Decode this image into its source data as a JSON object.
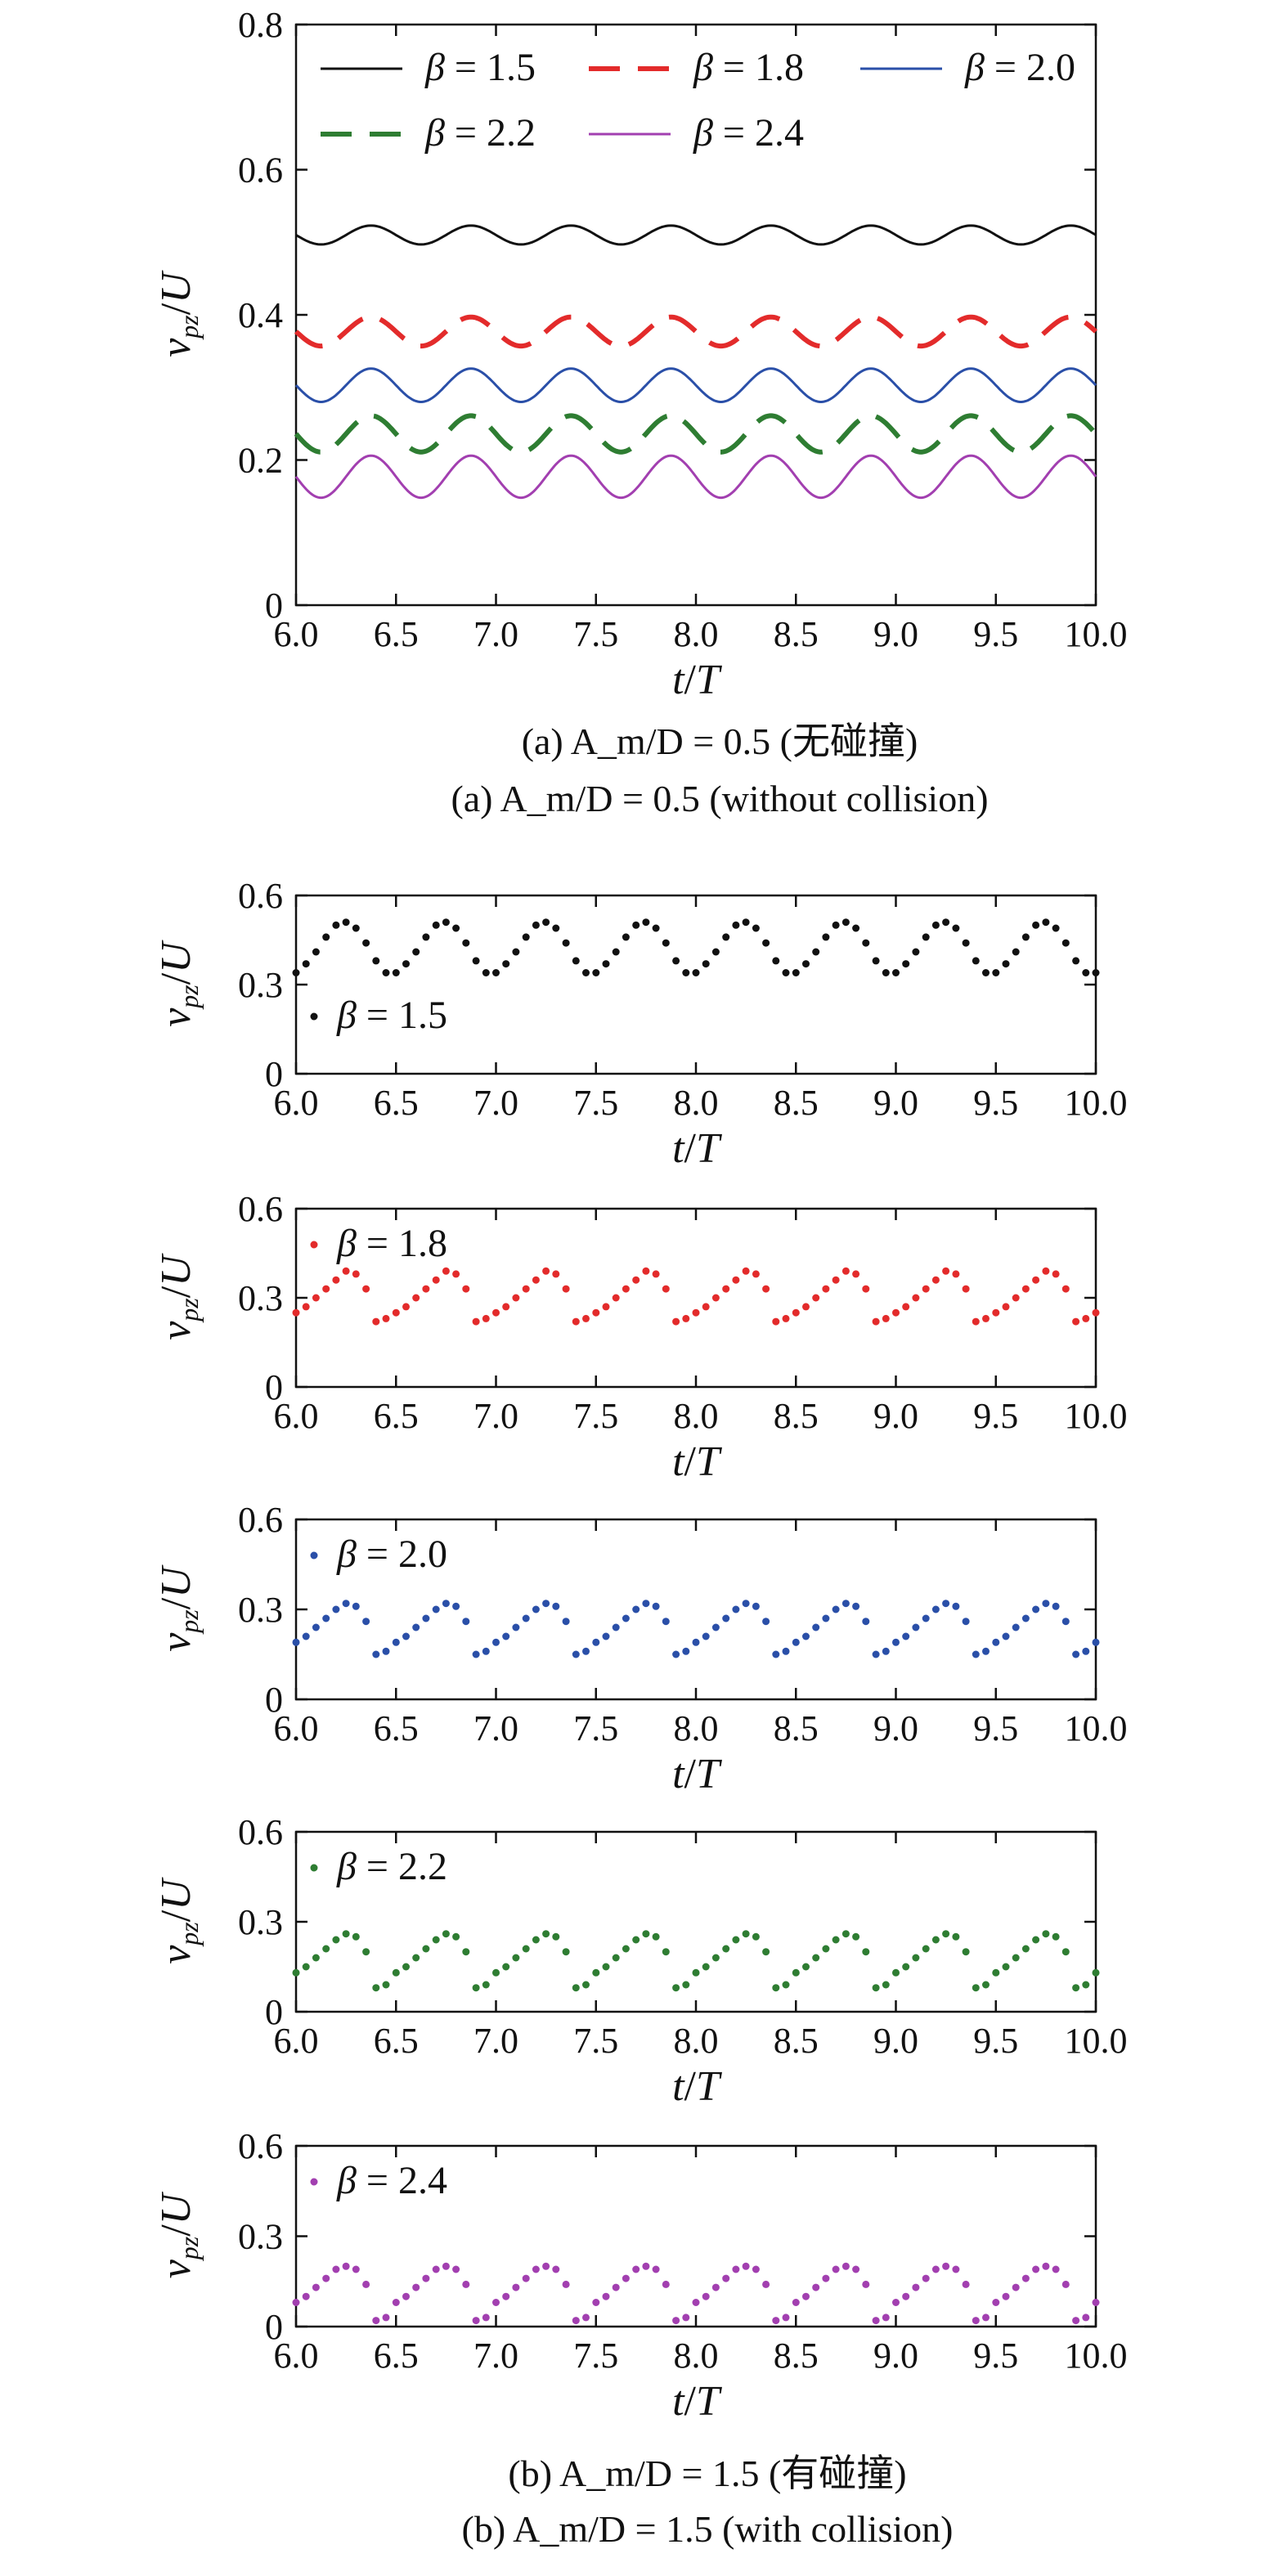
{
  "captions": {
    "a_zh": "(a) A_m/D = 0.5 (无碰撞)",
    "a_en": "(a) A_m/D = 0.5 (without collision)",
    "b_zh": "(b) A_m/D = 1.5 (有碰撞)",
    "b_en": "(b) A_m/D = 1.5 (with collision)"
  },
  "colors": {
    "beta_1_5": "#111111",
    "beta_1_8": "#e32b2b",
    "beta_2_0": "#2a4fa8",
    "beta_2_2": "#2e7d32",
    "beta_2_4": "#a23fb0"
  },
  "chart_data": [
    {
      "id": "a",
      "type": "line",
      "xlabel": "t/T",
      "ylabel": "v_pz/U",
      "xlim": [
        6.0,
        10.0
      ],
      "ylim": [
        0,
        0.8
      ],
      "xticks": [
        "6.0",
        "6.5",
        "7.0",
        "7.5",
        "8.0",
        "8.5",
        "9.0",
        "9.5",
        "10.0"
      ],
      "yticks": [
        "0",
        "0.2",
        "0.4",
        "0.6",
        "0.8"
      ],
      "legend_position": "top",
      "period": 0.5,
      "sample_t": [
        6.0,
        6.125,
        6.25,
        6.375,
        6.5
      ],
      "series": [
        {
          "name": "β = 1.5",
          "color": "#111111",
          "style": "solid",
          "mean": 0.51,
          "amplitude": 0.013,
          "values": [
            0.51,
            0.497,
            0.51,
            0.523,
            0.51
          ]
        },
        {
          "name": "β = 1.8",
          "color": "#e32b2b",
          "style": "dashed",
          "mean": 0.377,
          "amplitude": 0.02,
          "values": [
            0.377,
            0.357,
            0.377,
            0.397,
            0.377
          ]
        },
        {
          "name": "β = 2.0",
          "color": "#2a4fa8",
          "style": "solid",
          "mean": 0.303,
          "amplitude": 0.023,
          "values": [
            0.303,
            0.28,
            0.303,
            0.326,
            0.303
          ]
        },
        {
          "name": "β = 2.2",
          "color": "#2e7d32",
          "style": "dashed",
          "mean": 0.236,
          "amplitude": 0.025,
          "values": [
            0.236,
            0.211,
            0.236,
            0.261,
            0.236
          ]
        },
        {
          "name": "β = 2.4",
          "color": "#a23fb0",
          "style": "solid",
          "mean": 0.177,
          "amplitude": 0.029,
          "values": [
            0.177,
            0.148,
            0.177,
            0.206,
            0.177
          ]
        }
      ]
    },
    {
      "id": "b1",
      "type": "scatter",
      "xlabel": "t/T",
      "ylabel": "v_pz/U",
      "xlim": [
        6.0,
        10.0
      ],
      "ylim": [
        0,
        0.6
      ],
      "xticks": [
        "6.0",
        "6.5",
        "7.0",
        "7.5",
        "8.0",
        "8.5",
        "9.0",
        "9.5",
        "10.0"
      ],
      "yticks": [
        "0",
        "0.3",
        "0.6"
      ],
      "legend_position": "bottom-left",
      "series": [
        {
          "name": "β = 1.5",
          "color": "#111111",
          "period_x": [
            0.0,
            0.05,
            0.1,
            0.15,
            0.2,
            0.25,
            0.3,
            0.35,
            0.4,
            0.45
          ],
          "period_y": [
            0.34,
            0.37,
            0.41,
            0.46,
            0.5,
            0.51,
            0.49,
            0.44,
            0.38,
            0.34
          ]
        }
      ]
    },
    {
      "id": "b2",
      "type": "scatter",
      "xlabel": "t/T",
      "ylabel": "v_pz/U",
      "xlim": [
        6.0,
        10.0
      ],
      "ylim": [
        0,
        0.6
      ],
      "xticks": [
        "6.0",
        "6.5",
        "7.0",
        "7.5",
        "8.0",
        "8.5",
        "9.0",
        "9.5",
        "10.0"
      ],
      "yticks": [
        "0",
        "0.3",
        "0.6"
      ],
      "legend_position": "top-left",
      "series": [
        {
          "name": "β = 1.8",
          "color": "#e32b2b",
          "period_x": [
            0.0,
            0.05,
            0.1,
            0.15,
            0.2,
            0.25,
            0.3,
            0.35,
            0.4,
            0.45
          ],
          "period_y": [
            0.25,
            0.27,
            0.3,
            0.33,
            0.36,
            0.39,
            0.38,
            0.33,
            0.22,
            0.23
          ]
        }
      ]
    },
    {
      "id": "b3",
      "type": "scatter",
      "xlabel": "t/T",
      "ylabel": "v_pz/U",
      "xlim": [
        6.0,
        10.0
      ],
      "ylim": [
        0,
        0.6
      ],
      "xticks": [
        "6.0",
        "6.5",
        "7.0",
        "7.5",
        "8.0",
        "8.5",
        "9.0",
        "9.5",
        "10.0"
      ],
      "yticks": [
        "0",
        "0.3",
        "0.6"
      ],
      "legend_position": "top-left",
      "series": [
        {
          "name": "β = 2.0",
          "color": "#2a4fa8",
          "period_x": [
            0.0,
            0.05,
            0.1,
            0.15,
            0.2,
            0.25,
            0.3,
            0.35,
            0.4,
            0.45
          ],
          "period_y": [
            0.19,
            0.21,
            0.24,
            0.27,
            0.3,
            0.32,
            0.31,
            0.26,
            0.15,
            0.16
          ]
        }
      ]
    },
    {
      "id": "b4",
      "type": "scatter",
      "xlabel": "t/T",
      "ylabel": "v_pz/U",
      "xlim": [
        6.0,
        10.0
      ],
      "ylim": [
        0,
        0.6
      ],
      "xticks": [
        "6.0",
        "6.5",
        "7.0",
        "7.5",
        "8.0",
        "8.5",
        "9.0",
        "9.5",
        "10.0"
      ],
      "yticks": [
        "0",
        "0.3",
        "0.6"
      ],
      "legend_position": "top-left",
      "series": [
        {
          "name": "β = 2.2",
          "color": "#2e7d32",
          "period_x": [
            0.0,
            0.05,
            0.1,
            0.15,
            0.2,
            0.25,
            0.3,
            0.35,
            0.4,
            0.45
          ],
          "period_y": [
            0.13,
            0.15,
            0.18,
            0.21,
            0.24,
            0.26,
            0.25,
            0.2,
            0.08,
            0.09
          ]
        }
      ]
    },
    {
      "id": "b5",
      "type": "scatter",
      "xlabel": "t/T",
      "ylabel": "v_pz/U",
      "xlim": [
        6.0,
        10.0
      ],
      "ylim": [
        0,
        0.6
      ],
      "xticks": [
        "6.0",
        "6.5",
        "7.0",
        "7.5",
        "8.0",
        "8.5",
        "9.0",
        "9.5",
        "10.0"
      ],
      "yticks": [
        "0",
        "0.3",
        "0.6"
      ],
      "legend_position": "top-left",
      "series": [
        {
          "name": "β = 2.4",
          "color": "#a23fb0",
          "period_x": [
            0.0,
            0.05,
            0.1,
            0.15,
            0.2,
            0.25,
            0.3,
            0.35,
            0.4,
            0.45
          ],
          "period_y": [
            0.08,
            0.1,
            0.13,
            0.16,
            0.19,
            0.2,
            0.19,
            0.14,
            0.02,
            0.03
          ]
        }
      ]
    }
  ]
}
